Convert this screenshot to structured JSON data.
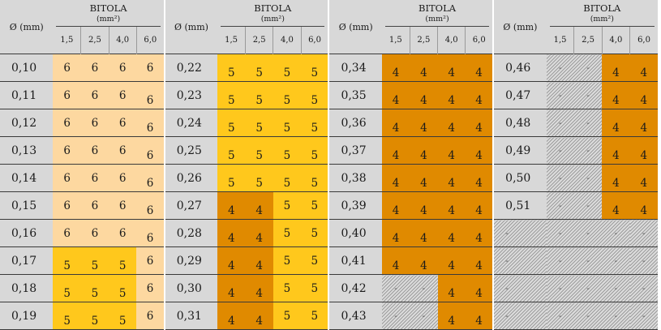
{
  "header": {
    "groups": [
      {
        "diameter_label": "Ø (mm)",
        "title": "BITOLA",
        "unit": "(mm²)",
        "gauges": [
          "1,5",
          "2,5",
          "4,0",
          "6,0"
        ]
      },
      {
        "diameter_label": "Ø (mm)",
        "title": "BITOLA",
        "unit": "(mm²)",
        "gauges": [
          "1,5",
          "2,5",
          "4,0",
          "6,0"
        ]
      },
      {
        "diameter_label": "Ø (mm)",
        "title": "BITOLA",
        "unit": "(mm²)",
        "gauges": [
          "1,5",
          "2,5",
          "4,0",
          "6,0"
        ]
      },
      {
        "diameter_label": "Ø (mm)",
        "title": "BITOLA",
        "unit": "(mm²)",
        "gauges": [
          "1,5",
          "2,5",
          "4,0",
          "6,0"
        ]
      }
    ]
  },
  "colors": {
    "value_6": "#fdd8a0",
    "value_5": "#ffc81c",
    "value_4": "#e08a00",
    "header_gray": "#d8d8d8",
    "not_applicable_hatch": "#9d9d9d"
  },
  "groups": [
    {
      "rows": [
        {
          "d": "0,10",
          "v": [
            "6",
            "6",
            "6",
            "6"
          ]
        },
        {
          "d": "0,11",
          "v": [
            "6",
            "6",
            "6",
            "6"
          ]
        },
        {
          "d": "0,12",
          "v": [
            "6",
            "6",
            "6",
            "6"
          ]
        },
        {
          "d": "0,13",
          "v": [
            "6",
            "6",
            "6",
            "6"
          ]
        },
        {
          "d": "0,14",
          "v": [
            "6",
            "6",
            "6",
            "6"
          ]
        },
        {
          "d": "0,15",
          "v": [
            "6",
            "6",
            "6",
            "6"
          ]
        },
        {
          "d": "0,16",
          "v": [
            "6",
            "6",
            "6",
            "6"
          ]
        },
        {
          "d": "0,17",
          "v": [
            "5",
            "5",
            "5",
            "6"
          ]
        },
        {
          "d": "0,18",
          "v": [
            "5",
            "5",
            "5",
            "6"
          ]
        },
        {
          "d": "0,19",
          "v": [
            "5",
            "5",
            "5",
            "6"
          ]
        }
      ]
    },
    {
      "rows": [
        {
          "d": "0,22",
          "v": [
            "5",
            "5",
            "5",
            "5"
          ]
        },
        {
          "d": "0,23",
          "v": [
            "5",
            "5",
            "5",
            "5"
          ]
        },
        {
          "d": "0,24",
          "v": [
            "5",
            "5",
            "5",
            "5"
          ]
        },
        {
          "d": "0,25",
          "v": [
            "5",
            "5",
            "5",
            "5"
          ]
        },
        {
          "d": "0,26",
          "v": [
            "5",
            "5",
            "5",
            "5"
          ]
        },
        {
          "d": "0,27",
          "v": [
            "4",
            "4",
            "5",
            "5"
          ]
        },
        {
          "d": "0,28",
          "v": [
            "4",
            "4",
            "5",
            "5"
          ]
        },
        {
          "d": "0,29",
          "v": [
            "4",
            "4",
            "5",
            "5"
          ]
        },
        {
          "d": "0,30",
          "v": [
            "4",
            "4",
            "5",
            "5"
          ]
        },
        {
          "d": "0,31",
          "v": [
            "4",
            "4",
            "5",
            "5"
          ]
        }
      ]
    },
    {
      "rows": [
        {
          "d": "0,34",
          "v": [
            "4",
            "4",
            "4",
            "4"
          ]
        },
        {
          "d": "0,35",
          "v": [
            "4",
            "4",
            "4",
            "4"
          ]
        },
        {
          "d": "0,36",
          "v": [
            "4",
            "4",
            "4",
            "4"
          ]
        },
        {
          "d": "0,37",
          "v": [
            "4",
            "4",
            "4",
            "4"
          ]
        },
        {
          "d": "0,38",
          "v": [
            "4",
            "4",
            "4",
            "4"
          ]
        },
        {
          "d": "0,39",
          "v": [
            "4",
            "4",
            "4",
            "4"
          ]
        },
        {
          "d": "0,40",
          "v": [
            "4",
            "4",
            "4",
            "4"
          ]
        },
        {
          "d": "0,41",
          "v": [
            "4",
            "4",
            "4",
            "4"
          ]
        },
        {
          "d": "0,42",
          "v": [
            "-",
            "-",
            "4",
            "4"
          ]
        },
        {
          "d": "0,43",
          "v": [
            "-",
            "-",
            "4",
            "4"
          ]
        }
      ]
    },
    {
      "rows": [
        {
          "d": "0,46",
          "v": [
            "-",
            "-",
            "4",
            "4"
          ]
        },
        {
          "d": "0,47",
          "v": [
            "-",
            "-",
            "4",
            "4"
          ]
        },
        {
          "d": "0,48",
          "v": [
            "-",
            "-",
            "4",
            "4"
          ]
        },
        {
          "d": "0,49",
          "v": [
            "-",
            "-",
            "4",
            "4"
          ]
        },
        {
          "d": "0,50",
          "v": [
            "-",
            "-",
            "4",
            "4"
          ]
        },
        {
          "d": "0,51",
          "v": [
            "-",
            "-",
            "4",
            "4"
          ]
        },
        {
          "d": "-",
          "v": [
            "-",
            "-",
            "-",
            "-"
          ]
        },
        {
          "d": "-",
          "v": [
            "-",
            "-",
            "-",
            "-"
          ]
        },
        {
          "d": "-",
          "v": [
            "-",
            "-",
            "-",
            "-"
          ]
        },
        {
          "d": "-",
          "v": [
            "-",
            "-",
            "-",
            "-"
          ]
        }
      ]
    }
  ]
}
